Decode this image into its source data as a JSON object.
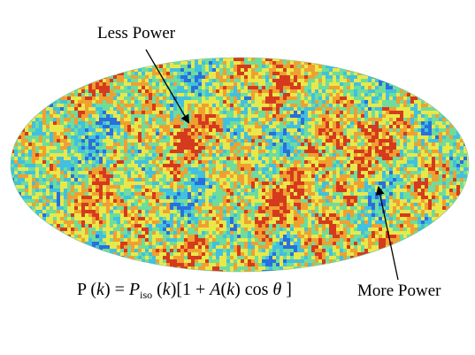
{
  "map": {
    "projection": "mollweide",
    "field": "temperature-fluctuation",
    "colors": {
      "cold": "#2a6fdc",
      "cool": "#41c0e0",
      "mid": "#6edc9c",
      "warm": "#e8e84a",
      "hot": "#f0a030",
      "hottest": "#d63a1e"
    }
  },
  "annotations": {
    "less_power": "Less Power",
    "more_power": "More Power"
  },
  "formula": {
    "lhs": "P (",
    "k": "k",
    "eq_rhs": ") = ",
    "P": "P",
    "sub": "iso",
    "mid": " (",
    "k2": "k",
    "bracket": ")[1 + ",
    "A": "A",
    "paren": "(",
    "k3": "k",
    "cos": ") cos ",
    "theta": "θ",
    "close": " ]"
  }
}
